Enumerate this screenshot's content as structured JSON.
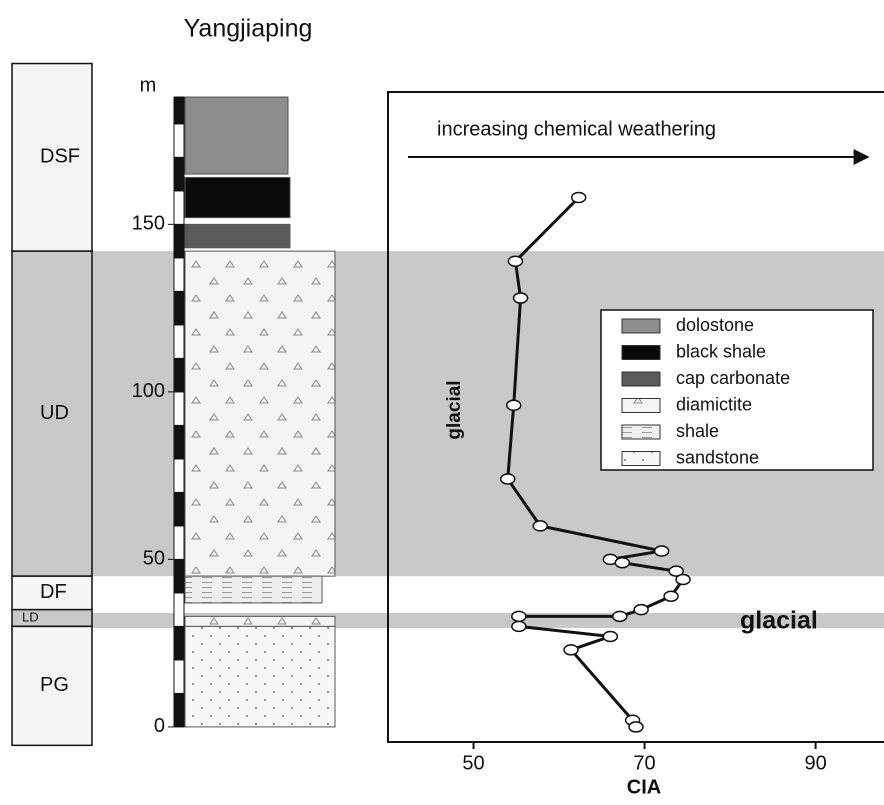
{
  "chart_data": {
    "type": "line",
    "title": "Yangjiaping",
    "x_label": "CIA",
    "y_label": "m",
    "annotations": {
      "arrow": "increasing chemical weathering",
      "upper_glacial": "glacial",
      "lower_glacial": "glacial"
    },
    "xlim": [
      40,
      98
    ],
    "ylim": [
      -4.5,
      189.5
    ],
    "xticks": [
      50,
      70,
      90
    ],
    "yticks": [
      0,
      50,
      100,
      150
    ],
    "series": [
      {
        "name": "CIA",
        "color": "#111111",
        "x": [
          62.3,
          54.9,
          55.5,
          54.7,
          54.0,
          57.8,
          72.0,
          66.0,
          67.4,
          73.7,
          74.5,
          73.1,
          69.6,
          67.1,
          55.3,
          55.3,
          66.0,
          61.4,
          68.6,
          69.0
        ],
        "values": [
          158,
          139,
          128,
          96,
          74,
          60,
          52.5,
          50,
          49,
          46.5,
          44,
          39,
          35,
          33,
          33,
          30,
          27,
          23,
          2,
          0
        ]
      }
    ],
    "glacial_intervals": [
      [
        45,
        142
      ],
      [
        29.5,
        34
      ]
    ],
    "formations": [
      {
        "name": "DSF",
        "bottom": 142,
        "top": 198
      },
      {
        "name": "UD",
        "bottom": 45,
        "top": 142
      },
      {
        "name": "DF",
        "bottom": 35,
        "top": 45
      },
      {
        "name": "LD",
        "bottom": 30,
        "top": 35
      },
      {
        "name": "PG",
        "bottom": -5.5,
        "top": 30
      }
    ],
    "lithologies": [
      {
        "name": "dolostone",
        "color": "#8c8c8c",
        "layers": [
          [
            165,
            188
          ]
        ]
      },
      {
        "name": "black shale",
        "color": "#0a0a0a",
        "layers": [
          [
            152,
            164
          ]
        ]
      },
      {
        "name": "cap carbonate",
        "color": "#5a5a5a",
        "layers": [
          [
            143,
            150
          ]
        ]
      },
      {
        "name": "diamictite",
        "color": "#f4f4f4",
        "layers": [
          [
            45,
            142
          ],
          [
            30,
            33
          ]
        ]
      },
      {
        "name": "shale",
        "color": "#e6e6e6",
        "layers": [
          [
            37,
            45
          ]
        ]
      },
      {
        "name": "sandstone",
        "color": "#f7f7f7",
        "layers": [
          [
            0,
            30
          ]
        ]
      }
    ]
  }
}
